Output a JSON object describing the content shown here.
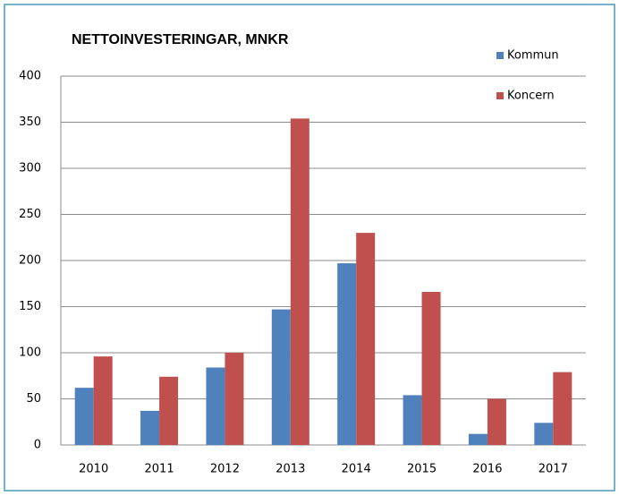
{
  "chart_data": {
    "type": "bar",
    "title": "NETTOINVESTERINGAR, MNKR",
    "categories": [
      "2010",
      "2011",
      "2012",
      "2013",
      "2014",
      "2015",
      "2016",
      "2017"
    ],
    "series": [
      {
        "name": "Kommun",
        "color": "#4f81bd",
        "values": [
          62,
          37,
          84,
          147,
          197,
          54,
          12,
          24
        ]
      },
      {
        "name": "Koncern",
        "color": "#c0504d",
        "values": [
          96,
          74,
          100,
          354,
          230,
          166,
          50,
          79
        ]
      }
    ],
    "ylim": [
      0,
      400
    ],
    "yticks": [
      0,
      50,
      100,
      150,
      200,
      250,
      300,
      350,
      400
    ],
    "grid": true,
    "legend": "top-right"
  }
}
